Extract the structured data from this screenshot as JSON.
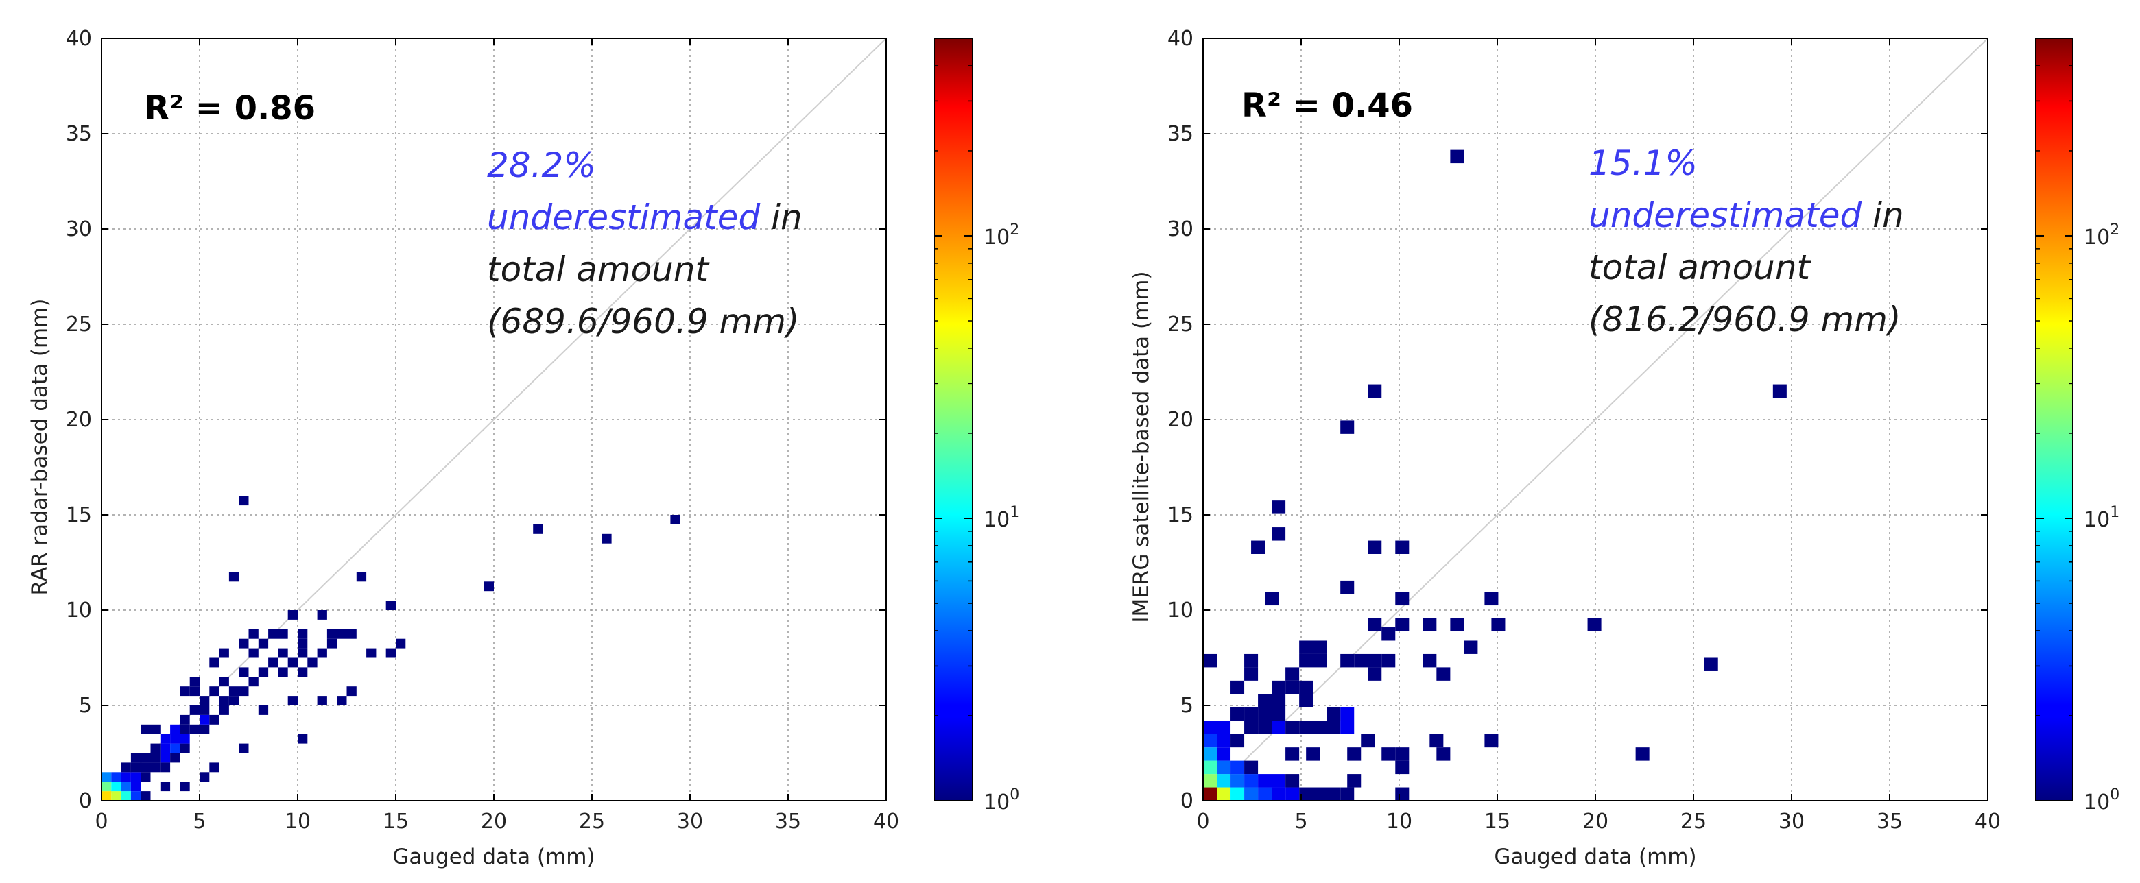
{
  "chart_data": [
    {
      "type": "heatmap",
      "title": "",
      "xlabel": "Gauged data (mm)",
      "ylabel": "RAR radar-based data (mm)",
      "xlim": [
        0,
        40
      ],
      "ylim": [
        0,
        40
      ],
      "xticks": [
        "0",
        "5",
        "10",
        "15",
        "20",
        "25",
        "30",
        "35",
        "40"
      ],
      "yticks": [
        "0",
        "5",
        "10",
        "15",
        "20",
        "25",
        "30",
        "35",
        "40"
      ],
      "grid": true,
      "reference_line": "1:1",
      "r2_label": "R² = 0.86",
      "annotation": {
        "line1": "28.2%",
        "line2_highlight": "underestimated",
        "line2_rest": " in",
        "line3": "total amount",
        "line4": "(689.6/960.9 mm)"
      },
      "bin_width": 0.5,
      "counts": [
        [
          0.25,
          0.25,
          60
        ],
        [
          0.75,
          0.25,
          35
        ],
        [
          1.25,
          0.25,
          12
        ],
        [
          0.25,
          0.75,
          20
        ],
        [
          0.75,
          0.75,
          10
        ],
        [
          1.25,
          0.75,
          4
        ],
        [
          1.75,
          0.75,
          2
        ],
        [
          0.25,
          1.25,
          5
        ],
        [
          0.75,
          1.25,
          3
        ],
        [
          1.25,
          1.25,
          2
        ],
        [
          1.75,
          1.25,
          2
        ],
        [
          2.25,
          1.25,
          1
        ],
        [
          1.75,
          0.25,
          3
        ],
        [
          2.25,
          0.25,
          1
        ],
        [
          1.25,
          1.75,
          1
        ],
        [
          1.75,
          1.75,
          1
        ],
        [
          2.25,
          1.75,
          1
        ],
        [
          2.75,
          2.25,
          1
        ],
        [
          3.25,
          2.25,
          2
        ],
        [
          3.75,
          2.25,
          1
        ],
        [
          2.75,
          2.75,
          1
        ],
        [
          3.25,
          2.75,
          2
        ],
        [
          3.75,
          2.75,
          3
        ],
        [
          4.25,
          2.75,
          1
        ],
        [
          3.25,
          3.25,
          2
        ],
        [
          3.75,
          3.25,
          2
        ],
        [
          4.25,
          3.25,
          2
        ],
        [
          2.25,
          3.75,
          1
        ],
        [
          2.75,
          3.75,
          1
        ],
        [
          3.75,
          3.75,
          2
        ],
        [
          4.25,
          3.75,
          1
        ],
        [
          5.25,
          3.75,
          1
        ],
        [
          4.25,
          4.25,
          1
        ],
        [
          5.25,
          4.25,
          2
        ],
        [
          5.75,
          4.25,
          1
        ],
        [
          4.75,
          4.75,
          1
        ],
        [
          5.25,
          4.75,
          1
        ],
        [
          6.25,
          4.75,
          1
        ],
        [
          5.25,
          5.25,
          1
        ],
        [
          6.25,
          5.25,
          1
        ],
        [
          6.75,
          5.25,
          1
        ],
        [
          4.25,
          5.75,
          1
        ],
        [
          5.75,
          5.75,
          1
        ],
        [
          6.75,
          5.75,
          1
        ],
        [
          7.25,
          5.75,
          1
        ],
        [
          4.75,
          6.25,
          1
        ],
        [
          6.25,
          6.25,
          1
        ],
        [
          7.75,
          6.25,
          1
        ],
        [
          8.25,
          6.75,
          1
        ],
        [
          7.25,
          6.75,
          1
        ],
        [
          9.25,
          6.75,
          1
        ],
        [
          10.25,
          6.75,
          1
        ],
        [
          8.75,
          7.25,
          1
        ],
        [
          9.75,
          7.25,
          1
        ],
        [
          10.75,
          7.25,
          1
        ],
        [
          7.75,
          7.75,
          1
        ],
        [
          9.25,
          7.75,
          1
        ],
        [
          10.25,
          7.75,
          1
        ],
        [
          11.25,
          7.75,
          1
        ],
        [
          7.25,
          8.25,
          1
        ],
        [
          8.25,
          8.25,
          1
        ],
        [
          10.25,
          8.25,
          1
        ],
        [
          11.75,
          8.25,
          1
        ],
        [
          7.75,
          8.75,
          1
        ],
        [
          8.75,
          8.75,
          1
        ],
        [
          9.25,
          8.75,
          1
        ],
        [
          10.25,
          8.75,
          1
        ],
        [
          11.75,
          8.75,
          1
        ],
        [
          12.25,
          8.75,
          1
        ],
        [
          12.75,
          8.75,
          1
        ],
        [
          11.25,
          9.75,
          1
        ],
        [
          14.75,
          10.25,
          1
        ],
        [
          5.75,
          7.25,
          1
        ],
        [
          6.25,
          7.75,
          1
        ],
        [
          9.75,
          5.25,
          1
        ],
        [
          11.25,
          5.25,
          1
        ],
        [
          12.25,
          5.25,
          1
        ],
        [
          12.75,
          5.75,
          1
        ],
        [
          10.25,
          3.25,
          1
        ],
        [
          7.25,
          2.75,
          1
        ],
        [
          5.75,
          1.75,
          1
        ],
        [
          5.25,
          1.25,
          1
        ],
        [
          3.25,
          0.75,
          1
        ],
        [
          4.25,
          0.75,
          1
        ],
        [
          2.75,
          1.75,
          1
        ],
        [
          8.25,
          4.75,
          1
        ],
        [
          13.75,
          7.75,
          1
        ],
        [
          14.75,
          7.75,
          1
        ],
        [
          15.25,
          8.25,
          1
        ],
        [
          7.25,
          15.75,
          1
        ],
        [
          6.75,
          11.75,
          1
        ],
        [
          13.25,
          11.75,
          1
        ],
        [
          19.75,
          11.25,
          1
        ],
        [
          22.25,
          14.25,
          1
        ],
        [
          25.75,
          13.75,
          1
        ],
        [
          29.25,
          14.75,
          1
        ],
        [
          4.75,
          3.75,
          1
        ],
        [
          3.25,
          1.75,
          1
        ],
        [
          2.25,
          2.25,
          1
        ],
        [
          1.75,
          2.25,
          1
        ],
        [
          4.75,
          5.75,
          1
        ],
        [
          9.75,
          9.75,
          1
        ]
      ]
    },
    {
      "type": "heatmap",
      "title": "",
      "xlabel": "Gauged data (mm)",
      "ylabel": "IMERG satellite-based data (mm)",
      "xlim": [
        0,
        40
      ],
      "ylim": [
        0,
        40
      ],
      "xticks": [
        "0",
        "5",
        "10",
        "15",
        "20",
        "25",
        "30",
        "35",
        "40"
      ],
      "yticks": [
        "0",
        "5",
        "10",
        "15",
        "20",
        "25",
        "30",
        "35",
        "40"
      ],
      "grid": true,
      "reference_line": "1:1",
      "r2_label": "R² = 0.46",
      "annotation": {
        "line1": "15.1%",
        "line2_highlight": "underestimated",
        "line2_rest": " in",
        "line3": "total amount",
        "line4": "(816.2/960.9 mm)"
      },
      "bin_width": 0.7,
      "counts": [
        [
          0.35,
          0.35,
          500
        ],
        [
          1.05,
          0.35,
          40
        ],
        [
          1.75,
          0.35,
          10
        ],
        [
          0.35,
          1.05,
          25
        ],
        [
          1.05,
          1.05,
          8
        ],
        [
          1.75,
          1.05,
          4
        ],
        [
          0.35,
          1.75,
          15
        ],
        [
          1.05,
          1.75,
          4
        ],
        [
          0.35,
          2.45,
          6
        ],
        [
          1.05,
          2.45,
          2
        ],
        [
          0.35,
          3.15,
          3
        ],
        [
          0.35,
          3.85,
          2
        ],
        [
          2.45,
          0.35,
          4
        ],
        [
          3.15,
          0.35,
          3
        ],
        [
          3.85,
          0.35,
          2
        ],
        [
          4.55,
          0.35,
          2
        ],
        [
          2.45,
          1.05,
          3
        ],
        [
          3.15,
          1.05,
          2
        ],
        [
          3.85,
          1.05,
          2
        ],
        [
          4.55,
          1.05,
          1
        ],
        [
          5.25,
          0.35,
          1
        ],
        [
          5.95,
          0.35,
          1
        ],
        [
          6.65,
          0.35,
          1
        ],
        [
          7.35,
          0.35,
          1
        ],
        [
          1.75,
          1.75,
          3
        ],
        [
          2.45,
          1.75,
          1
        ],
        [
          1.05,
          3.15,
          2
        ],
        [
          1.75,
          3.15,
          1
        ],
        [
          1.05,
          3.85,
          2
        ],
        [
          2.45,
          3.85,
          1
        ],
        [
          3.15,
          3.85,
          1
        ],
        [
          3.85,
          3.85,
          2
        ],
        [
          4.55,
          3.85,
          1
        ],
        [
          5.25,
          3.85,
          1
        ],
        [
          5.95,
          3.85,
          1
        ],
        [
          6.65,
          3.85,
          1
        ],
        [
          7.35,
          3.85,
          2
        ],
        [
          7.35,
          4.55,
          2
        ],
        [
          6.65,
          4.55,
          1
        ],
        [
          2.45,
          4.55,
          1
        ],
        [
          3.15,
          4.55,
          1
        ],
        [
          3.85,
          4.55,
          1
        ],
        [
          1.75,
          4.55,
          1
        ],
        [
          3.15,
          5.25,
          1
        ],
        [
          3.85,
          5.25,
          1
        ],
        [
          5.25,
          5.25,
          1
        ],
        [
          1.75,
          5.95,
          1
        ],
        [
          3.85,
          5.95,
          1
        ],
        [
          4.55,
          5.95,
          1
        ],
        [
          5.25,
          5.95,
          1
        ],
        [
          4.55,
          6.65,
          1
        ],
        [
          2.45,
          6.65,
          1
        ],
        [
          0.35,
          7.35,
          1
        ],
        [
          2.45,
          7.35,
          1
        ],
        [
          5.25,
          7.35,
          1
        ],
        [
          5.95,
          7.35,
          1
        ],
        [
          5.95,
          8.05,
          1
        ],
        [
          5.25,
          8.05,
          1
        ],
        [
          7.35,
          7.35,
          1
        ],
        [
          8.05,
          7.35,
          1
        ],
        [
          8.75,
          7.35,
          1
        ],
        [
          9.45,
          7.35,
          1
        ],
        [
          8.75,
          6.65,
          1
        ],
        [
          11.55,
          7.35,
          1
        ],
        [
          12.25,
          6.65,
          1
        ],
        [
          8.75,
          9.25,
          1
        ],
        [
          9.45,
          8.75,
          1
        ],
        [
          10.15,
          9.25,
          1
        ],
        [
          11.55,
          9.25,
          1
        ],
        [
          12.95,
          9.25,
          1
        ],
        [
          13.65,
          8.05,
          1
        ],
        [
          10.15,
          10.6,
          1
        ],
        [
          3.5,
          10.6,
          1
        ],
        [
          14.7,
          10.6,
          1
        ],
        [
          15.05,
          9.25,
          1
        ],
        [
          19.95,
          9.25,
          1
        ],
        [
          25.9,
          7.15,
          1
        ],
        [
          7.35,
          11.2,
          1
        ],
        [
          2.8,
          13.3,
          1
        ],
        [
          3.85,
          14.0,
          1
        ],
        [
          3.85,
          15.4,
          1
        ],
        [
          8.75,
          13.3,
          1
        ],
        [
          10.15,
          13.3,
          1
        ],
        [
          7.35,
          19.6,
          1
        ],
        [
          8.75,
          21.5,
          1
        ],
        [
          12.95,
          33.8,
          1
        ],
        [
          29.4,
          21.5,
          1
        ],
        [
          14.7,
          3.15,
          1
        ],
        [
          22.4,
          2.45,
          1
        ],
        [
          12.25,
          2.45,
          1
        ],
        [
          11.9,
          3.15,
          1
        ],
        [
          9.45,
          2.45,
          1
        ],
        [
          10.15,
          2.45,
          1
        ],
        [
          10.15,
          1.75,
          1
        ],
        [
          7.7,
          1.05,
          1
        ],
        [
          10.15,
          0.35,
          1
        ],
        [
          7.7,
          2.45,
          1
        ],
        [
          8.4,
          3.15,
          1
        ],
        [
          5.6,
          2.45,
          1
        ],
        [
          4.55,
          2.45,
          1
        ]
      ]
    }
  ],
  "colorbar": {
    "scale": "log",
    "min": 1,
    "max": 500,
    "tick_labels": [
      {
        "base": "10",
        "exp": "0",
        "value": 1
      },
      {
        "base": "10",
        "exp": "1",
        "value": 10
      },
      {
        "base": "10",
        "exp": "2",
        "value": 100
      }
    ],
    "colormap": "jet"
  },
  "colors": {
    "grid": "#9a9a9a",
    "reference_line": "#cfcfcf",
    "annotation_highlight": "#3b3bf0"
  }
}
